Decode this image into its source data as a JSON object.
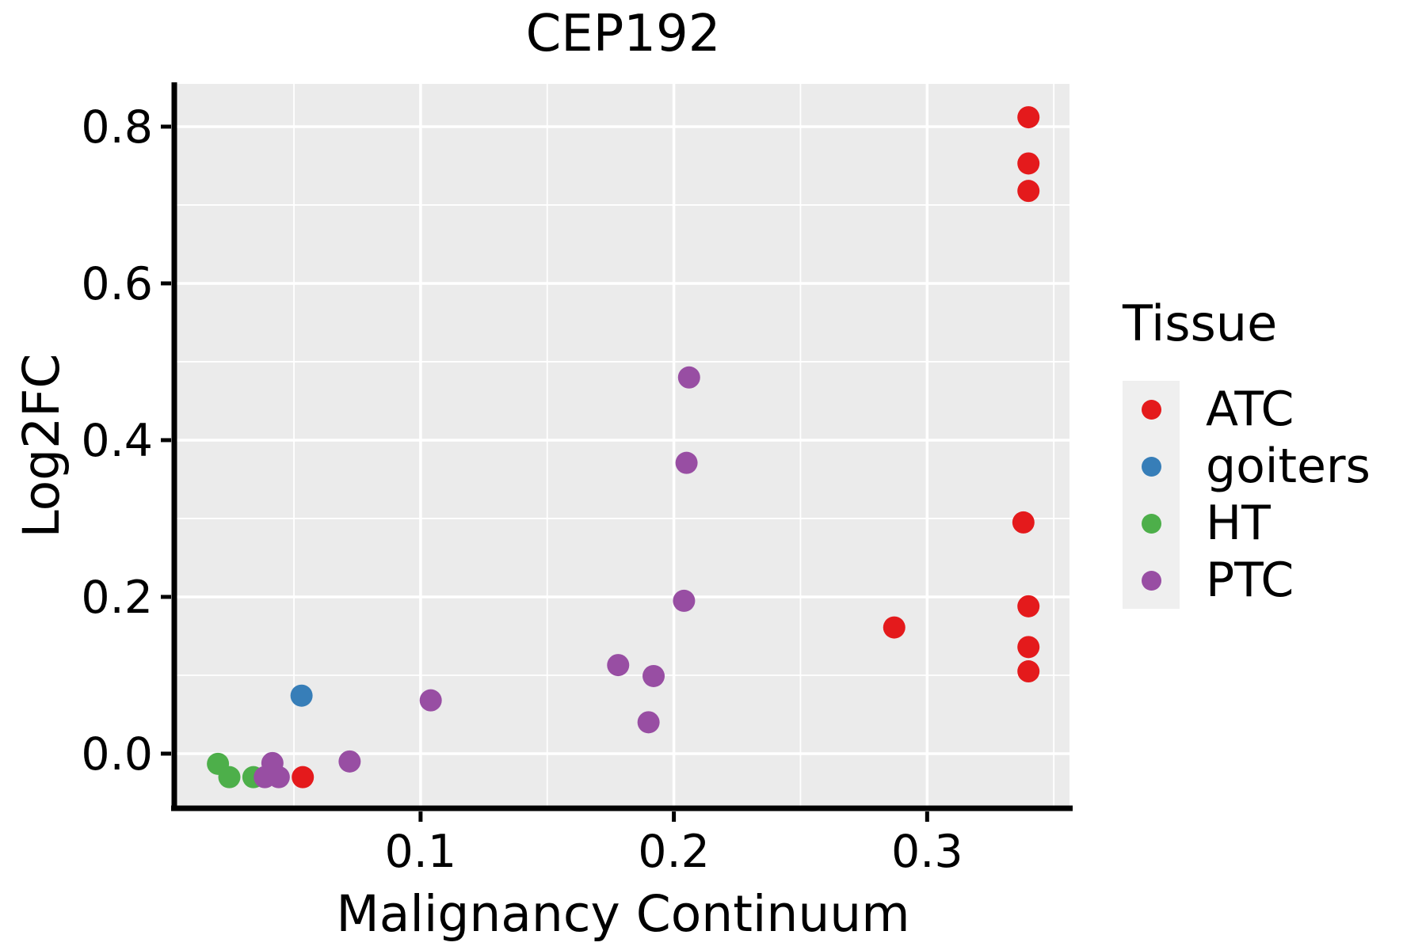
{
  "title": "CEP192",
  "axes": {
    "x_label": "Malignancy Continuum",
    "y_label": "Log2FC"
  },
  "legend": {
    "title": "Tissue",
    "items": [
      {
        "label": "ATC",
        "color": "#E41A1C"
      },
      {
        "label": "goiters",
        "color": "#377EB8"
      },
      {
        "label": "HT",
        "color": "#4DAF4A"
      },
      {
        "label": "PTC",
        "color": "#984EA3"
      }
    ]
  },
  "style_colors": {
    "panel_background": "#EBEBEB",
    "gridline": "#FFFFFF",
    "axis_line": "#000000",
    "legend_key_background": "#EFEFEF",
    "text": "#000000"
  },
  "chart_data": {
    "type": "scatter",
    "title": "CEP192",
    "xlabel": "Malignancy Continuum",
    "ylabel": "Log2FC",
    "xlim": [
      0.0037,
      0.3562
    ],
    "ylim": [
      -0.0667,
      0.8545
    ],
    "x_ticks": [
      {
        "v": 0.1,
        "label": "0.1"
      },
      {
        "v": 0.2,
        "label": "0.2"
      },
      {
        "v": 0.3,
        "label": "0.3"
      }
    ],
    "y_ticks": [
      {
        "v": 0.0,
        "label": "0.0"
      },
      {
        "v": 0.2,
        "label": "0.2"
      },
      {
        "v": 0.4,
        "label": "0.4"
      },
      {
        "v": 0.6,
        "label": "0.6"
      },
      {
        "v": 0.8,
        "label": "0.8"
      }
    ],
    "x_minor_ticks": [
      0.05,
      0.15,
      0.25,
      0.35
    ],
    "y_minor_ticks": [
      0.1,
      0.3,
      0.5,
      0.7
    ],
    "grid": "on",
    "legend_position": "right",
    "legend_title": "Tissue",
    "series": [
      {
        "name": "HT",
        "color": "#4DAF4A",
        "points": [
          [
            0.02,
            -0.013
          ],
          [
            0.0245,
            -0.03
          ],
          [
            0.034,
            -0.03
          ]
        ]
      },
      {
        "name": "PTC",
        "color": "#984EA3",
        "points": [
          [
            0.206,
            0.48
          ],
          [
            0.205,
            0.371
          ],
          [
            0.204,
            0.195
          ],
          [
            0.178,
            0.113
          ],
          [
            0.192,
            0.099
          ],
          [
            0.19,
            0.04
          ],
          [
            0.104,
            0.068
          ],
          [
            0.072,
            -0.01
          ],
          [
            0.0415,
            -0.012
          ],
          [
            0.0385,
            -0.03
          ],
          [
            0.044,
            -0.03
          ]
        ]
      },
      {
        "name": "goiters",
        "color": "#377EB8",
        "points": [
          [
            0.053,
            0.074
          ]
        ]
      },
      {
        "name": "ATC",
        "color": "#E41A1C",
        "points": [
          [
            0.34,
            0.812
          ],
          [
            0.34,
            0.753
          ],
          [
            0.34,
            0.718
          ],
          [
            0.338,
            0.295
          ],
          [
            0.34,
            0.188
          ],
          [
            0.287,
            0.161
          ],
          [
            0.34,
            0.136
          ],
          [
            0.34,
            0.105
          ],
          [
            0.0535,
            -0.03
          ]
        ]
      }
    ]
  }
}
